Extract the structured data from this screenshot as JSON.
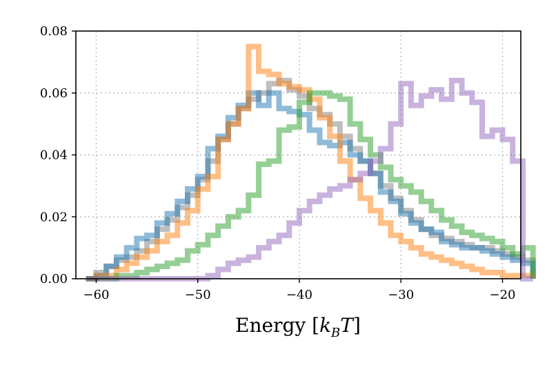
{
  "chart_data": {
    "type": "line",
    "style": "step histogram",
    "title": "",
    "xlabel_main": "Energy [",
    "xlabel_k": "k",
    "xlabel_sub": "B",
    "xlabel_T": "T",
    "xlabel_close": "]",
    "ylabel": "",
    "xlim": [
      -62,
      -18.2
    ],
    "ylim": [
      0,
      0.08
    ],
    "grid": true,
    "xticks": [
      -60,
      -50,
      -40,
      -30,
      -20
    ],
    "xtick_labels": [
      "−60",
      "−50",
      "−40",
      "−30",
      "−20"
    ],
    "yticks": [
      0,
      0.02,
      0.04,
      0.06,
      0.08
    ],
    "ytick_labels": [
      "0.00",
      "0.02",
      "0.04",
      "0.06",
      "0.08"
    ],
    "bin_width": 1,
    "series": [
      {
        "name": "gray",
        "color": "#7f7f7f",
        "start": -61,
        "values": [
          0.0,
          0.002,
          0.004,
          0.006,
          0.007,
          0.009,
          0.012,
          0.016,
          0.019,
          0.023,
          0.027,
          0.032,
          0.038,
          0.045,
          0.05,
          0.055,
          0.058,
          0.06,
          0.063,
          0.064,
          0.061,
          0.059,
          0.055,
          0.053,
          0.05,
          0.046,
          0.042,
          0.038,
          0.034,
          0.03,
          0.026,
          0.022,
          0.019,
          0.016,
          0.014,
          0.013,
          0.012,
          0.011,
          0.01,
          0.01,
          0.009,
          0.008,
          0.007,
          0.006
        ]
      },
      {
        "name": "blue",
        "color": "#1f77b4",
        "start": -61,
        "values": [
          0.0,
          0.001,
          0.004,
          0.007,
          0.01,
          0.013,
          0.014,
          0.018,
          0.021,
          0.025,
          0.029,
          0.033,
          0.042,
          0.046,
          0.052,
          0.056,
          0.06,
          0.056,
          0.06,
          0.055,
          0.054,
          0.053,
          0.048,
          0.044,
          0.043,
          0.044,
          0.04,
          0.038,
          0.034,
          0.028,
          0.025,
          0.021,
          0.018,
          0.016,
          0.015,
          0.012,
          0.011,
          0.01,
          0.01,
          0.009,
          0.008,
          0.007,
          0.006,
          0.005
        ]
      },
      {
        "name": "orange",
        "color": "#ff7f0e",
        "start": -61,
        "values": [
          0.0,
          0.001,
          0.001,
          0.003,
          0.005,
          0.007,
          0.009,
          0.012,
          0.014,
          0.018,
          0.022,
          0.029,
          0.033,
          0.045,
          0.05,
          0.055,
          0.075,
          0.067,
          0.066,
          0.063,
          0.062,
          0.061,
          0.058,
          0.052,
          0.046,
          0.038,
          0.032,
          0.026,
          0.022,
          0.018,
          0.014,
          0.012,
          0.01,
          0.008,
          0.007,
          0.006,
          0.005,
          0.004,
          0.003,
          0.002,
          0.002,
          0.001,
          0.001,
          0.001
        ]
      },
      {
        "name": "green",
        "color": "#2ca02c",
        "start": -61,
        "values": [
          0.0,
          0.0,
          0.0,
          0.001,
          0.001,
          0.002,
          0.003,
          0.004,
          0.005,
          0.006,
          0.009,
          0.011,
          0.014,
          0.017,
          0.02,
          0.022,
          0.027,
          0.037,
          0.038,
          0.048,
          0.049,
          0.057,
          0.06,
          0.06,
          0.059,
          0.058,
          0.05,
          0.045,
          0.04,
          0.036,
          0.032,
          0.03,
          0.028,
          0.025,
          0.022,
          0.019,
          0.017,
          0.015,
          0.014,
          0.013,
          0.012,
          0.01,
          0.008,
          0.01
        ]
      },
      {
        "name": "purple",
        "color": "#9467bd",
        "start": -61,
        "values": [
          0.0,
          0.0,
          0.0,
          0.0,
          0.0,
          0.0,
          0.0,
          0.0,
          0.0,
          0.0,
          0.0,
          0.0,
          0.001,
          0.003,
          0.005,
          0.006,
          0.007,
          0.01,
          0.012,
          0.014,
          0.018,
          0.022,
          0.025,
          0.027,
          0.029,
          0.03,
          0.032,
          0.034,
          0.038,
          0.042,
          0.05,
          0.063,
          0.056,
          0.059,
          0.061,
          0.058,
          0.064,
          0.06,
          0.057,
          0.046,
          0.048,
          0.045,
          0.038,
          0.0
        ]
      }
    ]
  }
}
